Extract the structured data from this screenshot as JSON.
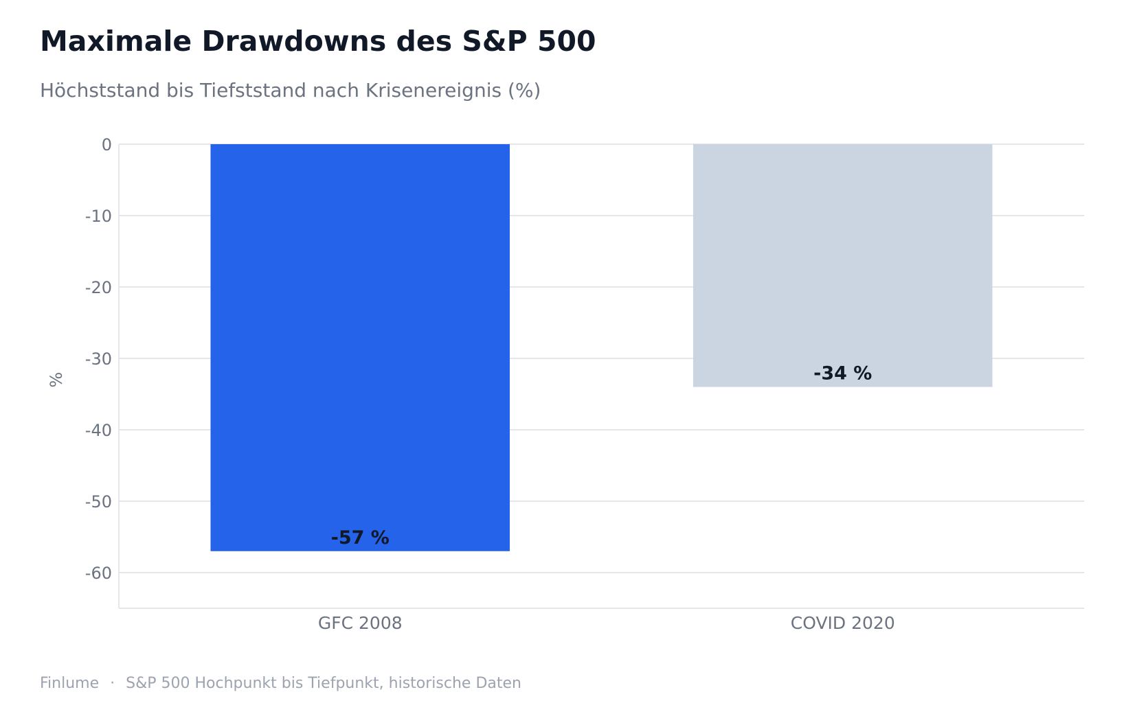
{
  "header": {
    "title": "Maximale Drawdowns des S&P 500",
    "subtitle": "Höchststand bis Tiefststand nach Krisenereignis (%)"
  },
  "footer": {
    "brand": "Finlume",
    "separator": "·",
    "source": "S&P 500 Hochpunkt bis Tiefpunkt, historische Daten"
  },
  "chart_data": {
    "type": "bar",
    "title": "Maximale Drawdowns des S&P 500",
    "subtitle": "Höchststand bis Tiefststand nach Krisenereignis (%)",
    "xlabel": "",
    "ylabel": "%",
    "categories": [
      "GFC 2008",
      "COVID 2020"
    ],
    "values": [
      -57,
      -34
    ],
    "data_labels": [
      "-57 %",
      "-34 %"
    ],
    "colors": [
      "#2563eb",
      "#cbd5e1"
    ],
    "ylim": [
      -65,
      0
    ],
    "yticks": [
      0,
      -10,
      -20,
      -30,
      -40,
      -50,
      -60
    ],
    "grid": true,
    "legend": "none"
  },
  "colors": {
    "title": "#111827",
    "subtitle": "#6b7280",
    "tick": "#6b7280",
    "grid": "#e5e7eb",
    "label": "#111827",
    "footer": "#9ca3af"
  }
}
